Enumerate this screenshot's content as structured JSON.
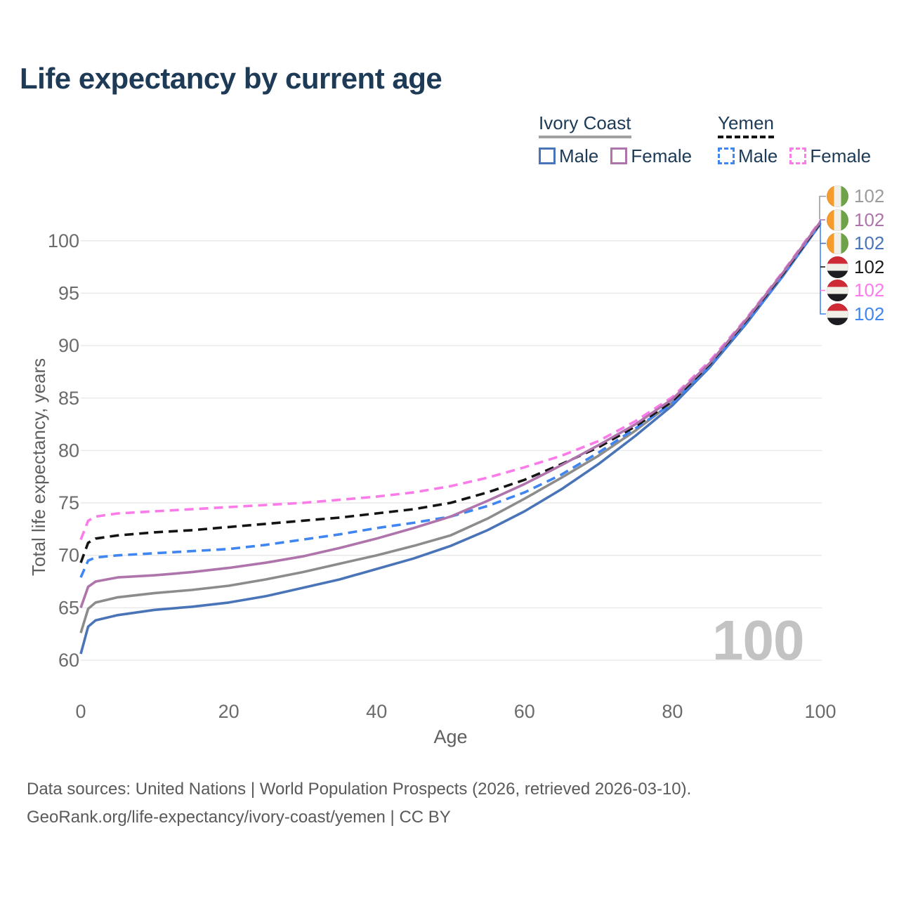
{
  "title": "Life expectancy by current age",
  "watermark": "100",
  "colors": {
    "title_navy": "#1d3a56",
    "grid": "#e7e7e7",
    "tick_label": "#6b6b6b",
    "axis_label": "#5f5f5f",
    "footer_text": "#5a5a5a",
    "watermark_gray": "#c3c3c3"
  },
  "legend": {
    "groups": [
      {
        "name": "Ivory Coast",
        "line_style": "solid",
        "underline_color": "#a0a0a0",
        "items": [
          {
            "label": "Male",
            "color": "#4A74B8",
            "dashed": false
          },
          {
            "label": "Female",
            "color": "#AE74AB",
            "dashed": false
          }
        ]
      },
      {
        "name": "Yemen",
        "line_style": "dashed",
        "underline_color": "#141414",
        "items": [
          {
            "label": "Male",
            "color": "#3F86F2",
            "dashed": true
          },
          {
            "label": "Female",
            "color": "#FB7BE9",
            "dashed": true
          }
        ]
      }
    ]
  },
  "end_labels": [
    {
      "value": "102",
      "flag": "ivory-coast",
      "color": "#9C9C9C",
      "series": "Ivory Coast Total"
    },
    {
      "value": "102",
      "flag": "ivory-coast",
      "color": "#AE74AB",
      "series": "Ivory Coast Female"
    },
    {
      "value": "102",
      "flag": "ivory-coast",
      "color": "#4A74B8",
      "series": "Ivory Coast Male"
    },
    {
      "value": "102",
      "flag": "yemen",
      "color": "#1B1B1B",
      "series": "Yemen Total"
    },
    {
      "value": "102",
      "flag": "yemen",
      "color": "#FB7BE9",
      "series": "Yemen Female"
    },
    {
      "value": "102",
      "flag": "yemen",
      "color": "#3F86F2",
      "series": "Yemen Male"
    }
  ],
  "footer": {
    "line1": "Data sources: United Nations | World Population Prospects (2026, retrieved 2026-03-10).",
    "line2": "GeoRank.org/life-expectancy/ivory-coast/yemen | CC BY"
  },
  "chart_data": {
    "type": "line",
    "title": "Life expectancy by current age",
    "xlabel": "Age",
    "ylabel": "Total life expectancy, years",
    "xlim": [
      0,
      100
    ],
    "ylim": [
      58,
      103
    ],
    "xticks": [
      0,
      20,
      40,
      60,
      80,
      100
    ],
    "yticks": [
      60,
      65,
      70,
      75,
      80,
      85,
      90,
      95,
      100
    ],
    "grid": true,
    "legend_position": "top-right",
    "x": [
      0,
      1,
      2,
      5,
      10,
      15,
      20,
      25,
      30,
      35,
      40,
      45,
      50,
      55,
      60,
      65,
      70,
      75,
      80,
      85,
      90,
      95,
      100
    ],
    "series": [
      {
        "name": "Ivory Coast Total",
        "slug": "ivory-coast-total",
        "color": "#8C8C8C",
        "dashed": false,
        "values": [
          62.6,
          64.9,
          65.5,
          66.0,
          66.4,
          66.7,
          67.1,
          67.7,
          68.4,
          69.2,
          70.0,
          70.9,
          71.9,
          73.5,
          75.4,
          77.4,
          79.5,
          81.9,
          84.6,
          88.1,
          92.3,
          96.8,
          101.7
        ]
      },
      {
        "name": "Ivory Coast Male",
        "slug": "ivory-coast-male",
        "color": "#4A74B8",
        "dashed": false,
        "values": [
          60.6,
          63.2,
          63.8,
          64.3,
          64.8,
          65.1,
          65.5,
          66.1,
          66.9,
          67.7,
          68.7,
          69.7,
          70.9,
          72.4,
          74.2,
          76.3,
          78.7,
          81.4,
          84.3,
          87.9,
          92.1,
          96.7,
          101.6
        ]
      },
      {
        "name": "Yemen Male",
        "slug": "yemen-male",
        "color": "#3F86F2",
        "dashed": true,
        "values": [
          67.9,
          69.5,
          69.8,
          70.0,
          70.2,
          70.4,
          70.6,
          71.0,
          71.5,
          72.0,
          72.6,
          73.1,
          73.7,
          74.7,
          76.0,
          77.7,
          79.8,
          82.1,
          84.5,
          88.0,
          92.2,
          96.7,
          101.6
        ]
      },
      {
        "name": "Yemen Total",
        "slug": "yemen-total",
        "color": "#141414",
        "dashed": true,
        "values": [
          69.3,
          71.2,
          71.6,
          71.9,
          72.2,
          72.4,
          72.7,
          73.0,
          73.3,
          73.6,
          74.0,
          74.4,
          75.0,
          76.0,
          77.2,
          78.7,
          80.3,
          82.3,
          84.7,
          88.2,
          92.4,
          96.9,
          101.7
        ]
      },
      {
        "name": "Yemen Female",
        "slug": "yemen-female",
        "color": "#FB7BE9",
        "dashed": true,
        "values": [
          71.5,
          73.3,
          73.7,
          74.0,
          74.2,
          74.4,
          74.6,
          74.8,
          75.0,
          75.3,
          75.6,
          76.0,
          76.6,
          77.4,
          78.4,
          79.5,
          80.9,
          82.8,
          85.1,
          88.5,
          92.6,
          97.1,
          101.9
        ]
      },
      {
        "name": "Ivory Coast Female",
        "slug": "ivory-coast-female",
        "color": "#AE74AB",
        "dashed": false,
        "values": [
          65.0,
          67.0,
          67.5,
          67.9,
          68.1,
          68.4,
          68.8,
          69.3,
          69.9,
          70.7,
          71.6,
          72.6,
          73.7,
          75.2,
          76.8,
          78.6,
          80.5,
          82.5,
          84.9,
          88.3,
          92.5,
          97.0,
          101.8
        ]
      }
    ]
  }
}
